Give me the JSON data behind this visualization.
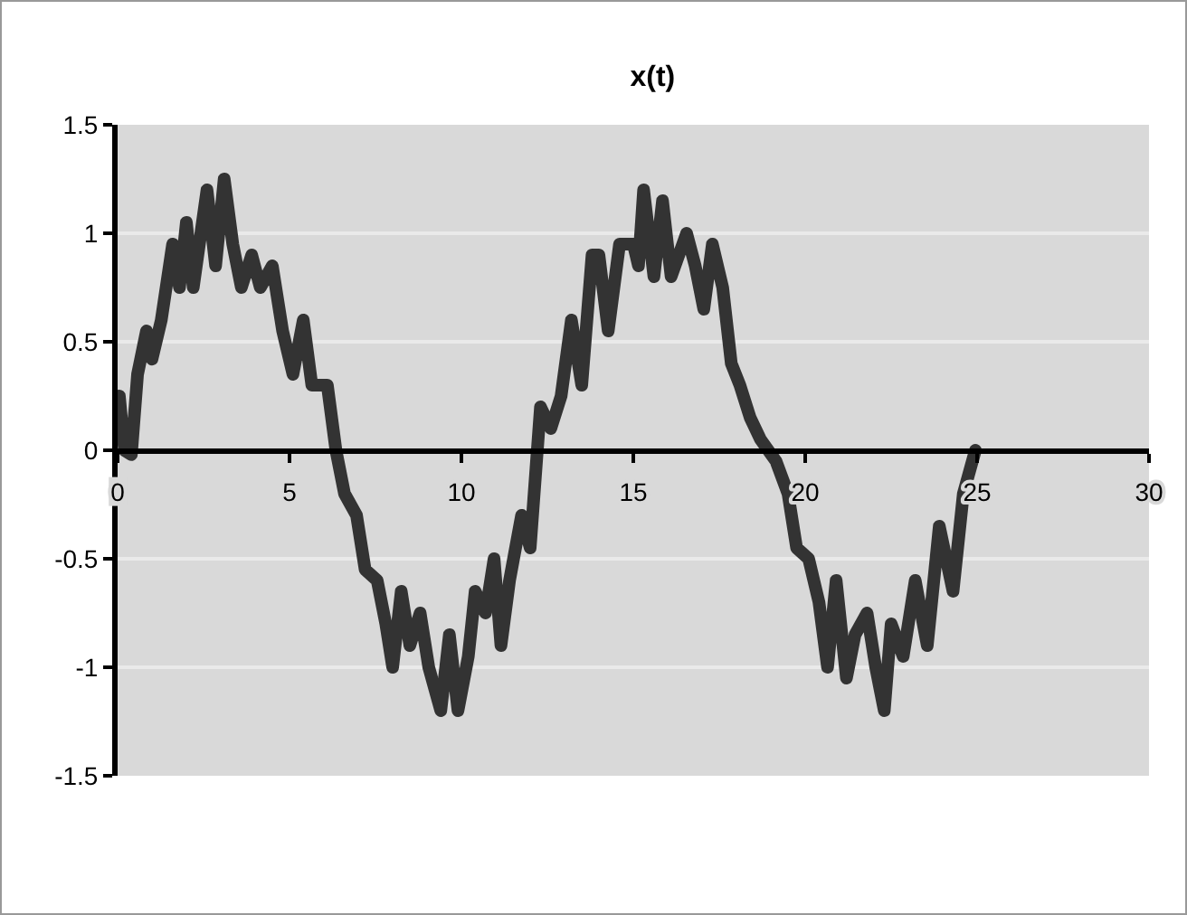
{
  "chart_data": {
    "type": "line",
    "title": "x(t)",
    "x": [
      0.05,
      0.2,
      0.4,
      0.58,
      0.84,
      1.0,
      1.27,
      1.6,
      1.8,
      2.0,
      2.2,
      2.6,
      2.85,
      3.1,
      3.35,
      3.6,
      3.9,
      4.15,
      4.5,
      4.8,
      5.1,
      5.4,
      5.65,
      6.1,
      6.35,
      6.6,
      6.95,
      7.2,
      7.55,
      7.8,
      8.0,
      8.25,
      8.5,
      8.8,
      9.05,
      9.4,
      9.65,
      9.9,
      10.2,
      10.4,
      10.7,
      10.95,
      11.15,
      11.4,
      11.75,
      12.0,
      12.3,
      12.6,
      12.9,
      13.2,
      13.5,
      13.8,
      14.0,
      14.27,
      14.6,
      15.0,
      15.15,
      15.3,
      15.6,
      15.85,
      16.1,
      16.55,
      16.8,
      17.05,
      17.3,
      17.6,
      17.85,
      18.1,
      18.4,
      18.7,
      19.15,
      19.5,
      19.75,
      20.1,
      20.4,
      20.65,
      20.9,
      21.2,
      21.45,
      21.8,
      22.05,
      22.3,
      22.5,
      22.85,
      23.2,
      23.55,
      23.9,
      24.3,
      24.6,
      24.95
    ],
    "series": [
      {
        "color": "#333333",
        "values": [
          0.25,
          0,
          -0.02,
          0.35,
          0.55,
          0.42,
          0.6,
          0.95,
          0.75,
          1.05,
          0.75,
          1.2,
          0.85,
          1.25,
          0.95,
          0.75,
          0.9,
          0.75,
          0.85,
          0.55,
          0.35,
          0.6,
          0.3,
          0.3,
          0,
          -0.2,
          -0.3,
          -0.55,
          -0.6,
          -0.8,
          -1.0,
          -0.65,
          -0.9,
          -0.75,
          -1.0,
          -1.2,
          -0.85,
          -1.2,
          -0.95,
          -0.65,
          -0.75,
          -0.5,
          -0.9,
          -0.6,
          -0.3,
          -0.45,
          0.2,
          0.1,
          0.25,
          0.6,
          0.3,
          0.9,
          0.9,
          0.55,
          0.95,
          0.95,
          0.85,
          1.2,
          0.8,
          1.15,
          0.8,
          1.0,
          0.85,
          0.65,
          0.95,
          0.75,
          0.4,
          0.3,
          0.15,
          0.05,
          -0.05,
          -0.2,
          -0.45,
          -0.5,
          -0.7,
          -1.0,
          -0.6,
          -1.05,
          -0.85,
          -0.75,
          -1.0,
          -1.2,
          -0.8,
          -0.95,
          -0.6,
          -0.9,
          -0.35,
          -0.65,
          -0.2,
          0
        ]
      }
    ],
    "xlim": [
      0,
      30
    ],
    "xticks": [
      0,
      5,
      10,
      15,
      20,
      25,
      30
    ],
    "ylim": [
      -1.5,
      1.5
    ],
    "yticks": [
      -1.5,
      -1,
      -0.5,
      0,
      0.5,
      1,
      1.5
    ],
    "grid": "y",
    "marker": "none",
    "line_style": "solid"
  }
}
